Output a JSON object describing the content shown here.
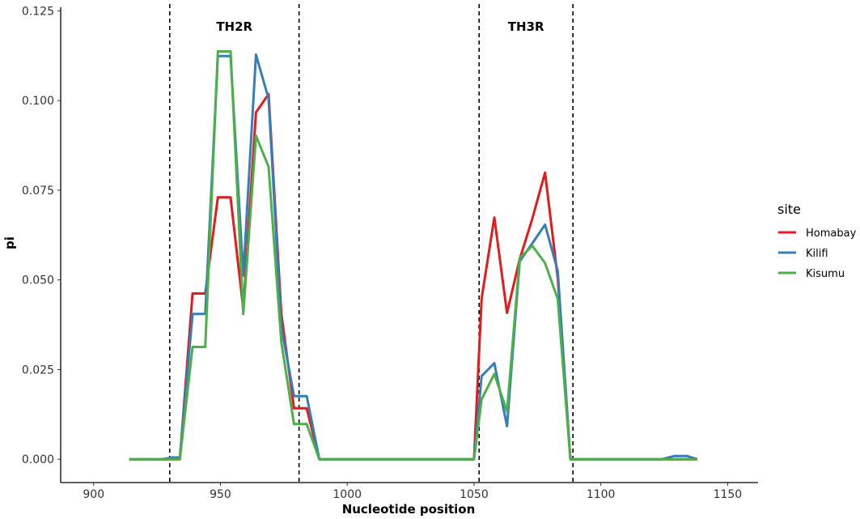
{
  "chart_data": {
    "type": "line",
    "xlabel": "Nucleotide position",
    "ylabel": "pi",
    "xlim": [
      887,
      1162
    ],
    "ylim": [
      -0.0065,
      0.126
    ],
    "xticks": [
      900,
      950,
      1000,
      1050,
      1100,
      1150
    ],
    "yticks": [
      0.0,
      0.025,
      0.05,
      0.075,
      0.1,
      0.125
    ],
    "ytick_labels": [
      "0.000",
      "0.025",
      "0.050",
      "0.075",
      "0.100",
      "0.125"
    ],
    "grid": false,
    "legend": {
      "title": "site",
      "position": "right"
    },
    "regions": [
      {
        "label": "TH2R",
        "start": 930,
        "end": 981
      },
      {
        "label": "TH3R",
        "start": 1052,
        "end": 1089
      }
    ],
    "series": [
      {
        "name": "Homabay",
        "color": "#e41a1c",
        "x": [
          914,
          927,
          931,
          934,
          939,
          944,
          949,
          954,
          959,
          964,
          969,
          974,
          979,
          984,
          989,
          1050,
          1053,
          1058,
          1063,
          1068,
          1073,
          1078,
          1083,
          1088,
          1138
        ],
        "y": [
          0.0,
          0.0,
          0.0,
          0.0,
          0.0462,
          0.0462,
          0.073,
          0.073,
          0.0419,
          0.0967,
          0.1018,
          0.0406,
          0.0142,
          0.0142,
          0.0,
          0.0,
          0.0448,
          0.0674,
          0.0408,
          0.0558,
          0.0671,
          0.0799,
          0.0505,
          0.0,
          0.0
        ]
      },
      {
        "name": "Kilifi",
        "color": "#377eb8",
        "x": [
          914,
          927,
          931,
          934,
          939,
          944,
          949,
          954,
          959,
          964,
          969,
          974,
          979,
          984,
          989,
          1050,
          1053,
          1058,
          1063,
          1068,
          1073,
          1078,
          1083,
          1088,
          1124,
          1129,
          1134,
          1138
        ],
        "y": [
          0.0,
          0.0,
          0.0005,
          0.0005,
          0.0405,
          0.0405,
          0.1124,
          0.1124,
          0.0512,
          0.1128,
          0.1005,
          0.0368,
          0.0176,
          0.0176,
          0.0,
          0.0,
          0.0232,
          0.0268,
          0.0092,
          0.0552,
          0.0602,
          0.0654,
          0.0525,
          0.0,
          0.0,
          0.0009,
          0.0009,
          0.0
        ]
      },
      {
        "name": "Kisumu",
        "color": "#4daf4a",
        "x": [
          914,
          927,
          931,
          934,
          939,
          944,
          949,
          954,
          959,
          964,
          969,
          974,
          979,
          984,
          989,
          1050,
          1053,
          1058,
          1063,
          1068,
          1073,
          1078,
          1083,
          1088,
          1138
        ],
        "y": [
          0.0,
          0.0,
          0.0,
          0.0,
          0.0313,
          0.0313,
          0.1137,
          0.1137,
          0.0405,
          0.0902,
          0.0815,
          0.0327,
          0.0098,
          0.0098,
          0.0,
          0.0,
          0.0167,
          0.0238,
          0.0133,
          0.0561,
          0.0595,
          0.0547,
          0.0447,
          0.0,
          0.0
        ]
      }
    ]
  }
}
